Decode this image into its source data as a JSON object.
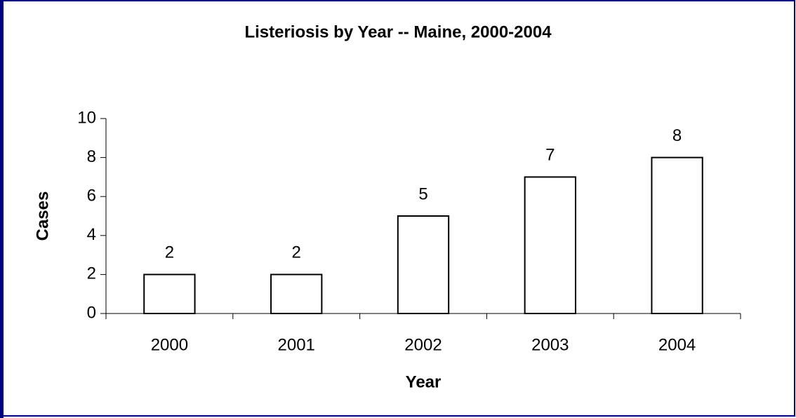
{
  "chart_data": {
    "type": "bar",
    "title": "Listeriosis by Year -- Maine, 2000-2004",
    "xlabel": "Year",
    "ylabel": "Cases",
    "categories": [
      "2000",
      "2001",
      "2002",
      "2003",
      "2004"
    ],
    "values": [
      2,
      2,
      5,
      7,
      8
    ],
    "color": "#ffffff",
    "ylim": [
      0,
      10
    ],
    "yticks": [
      0,
      2,
      4,
      6,
      8,
      10
    ],
    "grid": false
  }
}
